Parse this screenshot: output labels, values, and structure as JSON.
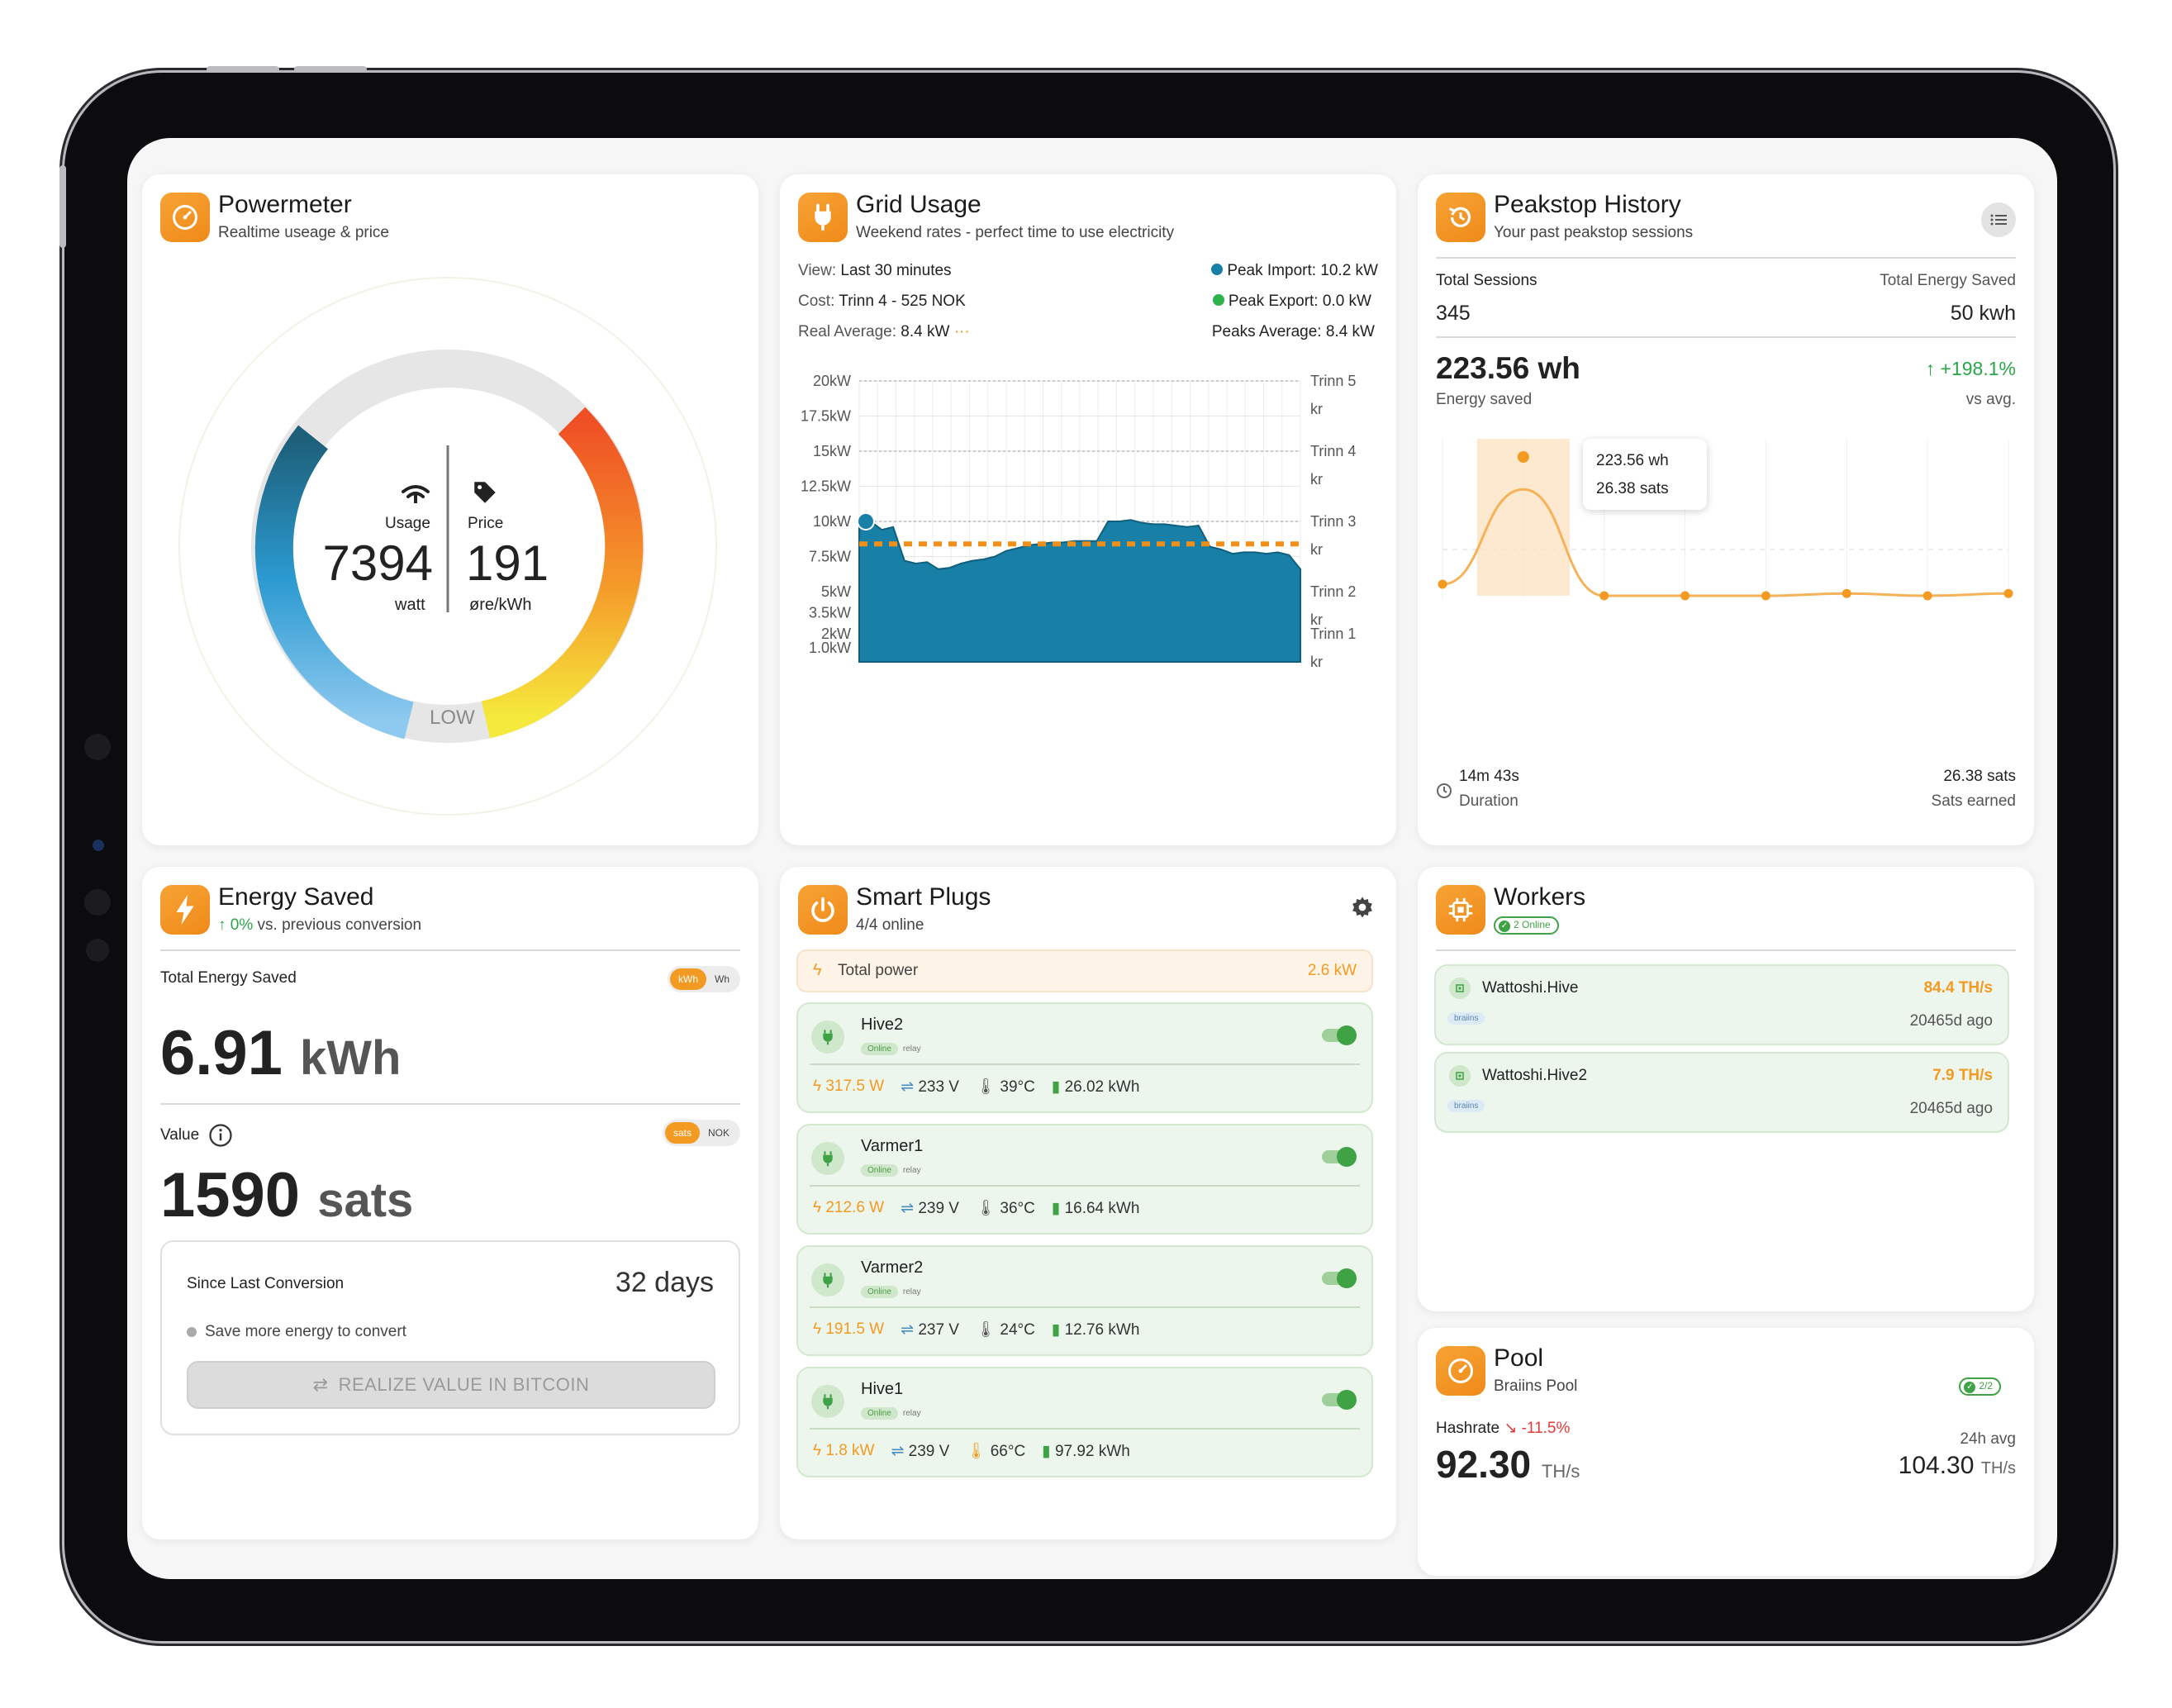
{
  "powermeter": {
    "title": "Powermeter",
    "subtitle": "Realtime useage & price",
    "usage_label": "Usage",
    "usage_value": "7394",
    "usage_unit": "watt",
    "price_label": "Price",
    "price_value": "191",
    "price_unit": "øre/kWh",
    "level": "LOW"
  },
  "grid": {
    "title": "Grid Usage",
    "subtitle": "Weekend rates - perfect time to use electricity",
    "view_label": "View:",
    "view_value": "Last 30 minutes",
    "cost_label": "Cost:",
    "cost_value": "Trinn 4 - 525 NOK",
    "avg_label": "Real Average:",
    "avg_value": "8.4 kW",
    "peak_import": "Peak Import: 10.2 kW",
    "peak_export": "Peak Export: 0.0 kW",
    "peaks_avg": "Peaks Average: 8.4 kW",
    "colors": {
      "import": "#1880a6",
      "export": "#2eb34a",
      "average": "#f0901a"
    }
  },
  "chart_data": {
    "type": "area",
    "yticks": [
      "20kW",
      "17.5kW",
      "15kW",
      "12.5kW",
      "10kW",
      "7.5kW",
      "5kW",
      "3.5kW",
      "2kW",
      "1.0kW"
    ],
    "tiers": [
      {
        "name": "Trinn 5",
        "unit": "kr",
        "y": 20
      },
      {
        "name": "Trinn 4",
        "unit": "kr",
        "y": 15
      },
      {
        "name": "Trinn 3",
        "unit": "kr",
        "y": 10
      },
      {
        "name": "Trinn 2",
        "unit": "kr",
        "y": 5
      },
      {
        "name": "Trinn 1",
        "unit": "kr",
        "y": 2
      }
    ],
    "ylim": [
      0,
      20
    ],
    "average": 8.4,
    "values": [
      10.0,
      10.0,
      9.4,
      9.6,
      7.2,
      7.0,
      7.1,
      6.6,
      6.7,
      7.0,
      7.2,
      7.3,
      7.5,
      7.9,
      8.1,
      8.3,
      8.4,
      8.5,
      8.5,
      8.6,
      8.6,
      8.6,
      10.0,
      10.0,
      10.1,
      9.9,
      9.8,
      9.8,
      9.7,
      9.6,
      9.7,
      8.2,
      8.0,
      7.7,
      7.8,
      7.8,
      7.7,
      7.8,
      7.6,
      6.6
    ]
  },
  "peakstop": {
    "title": "Peakstop History",
    "subtitle": "Your past peakstop sessions",
    "sessions_label": "Total Sessions",
    "sessions_value": "345",
    "energy_total_label": "Total Energy Saved",
    "energy_total_value": "50 kwh",
    "saved_value": "223.56 wh",
    "saved_label": "Energy saved",
    "delta": "+198.1%",
    "delta_label": "vs avg.",
    "tooltip_line1": "223.56 wh",
    "tooltip_line2": "26.38 sats",
    "duration_value": "14m 43s",
    "duration_label": "Duration",
    "sats_value": "26.38 sats",
    "sats_label": "Sats earned",
    "series": [
      0.1,
      0.92,
      0.0,
      0.0,
      0.0,
      0.02,
      0.0,
      0.02
    ]
  },
  "energy_saved": {
    "title": "Energy Saved",
    "change": "0%",
    "change_label": "vs. previous conversion",
    "total_label": "Total Energy Saved",
    "unit_options": [
      "kWh",
      "Wh"
    ],
    "value": "6.91",
    "unit": "kWh",
    "value_label": "Value",
    "currency_options": [
      "sats",
      "NOK"
    ],
    "sats_value": "1590",
    "sats_unit": "sats",
    "since_label": "Since Last Conversion",
    "since_value": "32 days",
    "hint": "Save more energy to convert",
    "button": "REALIZE VALUE IN BITCOIN"
  },
  "plugs": {
    "title": "Smart Plugs",
    "subtitle": "4/4 online",
    "total_label": "Total power",
    "total_value": "2.6 kW",
    "items": [
      {
        "name": "Hive2",
        "status": "Online",
        "type": "relay",
        "power": "317.5 W",
        "voltage": "233 V",
        "temp": "39°C",
        "energy": "26.02 kWh"
      },
      {
        "name": "Varmer1",
        "status": "Online",
        "type": "relay",
        "power": "212.6 W",
        "voltage": "239 V",
        "temp": "36°C",
        "energy": "16.64 kWh"
      },
      {
        "name": "Varmer2",
        "status": "Online",
        "type": "relay",
        "power": "191.5 W",
        "voltage": "237 V",
        "temp": "24°C",
        "energy": "12.76 kWh"
      },
      {
        "name": "Hive1",
        "status": "Online",
        "type": "relay",
        "power": "1.8 kW",
        "voltage": "239 V",
        "temp": "66°C",
        "energy": "97.92 kWh"
      }
    ]
  },
  "workers": {
    "title": "Workers",
    "online": "2 Online",
    "items": [
      {
        "name": "Wattoshi.Hive",
        "tag": "braiins",
        "hashrate": "84.4 TH/s",
        "seen": "20465d ago"
      },
      {
        "name": "Wattoshi.Hive2",
        "tag": "braiins",
        "hashrate": "7.9 TH/s",
        "seen": "20465d ago"
      }
    ]
  },
  "pool": {
    "title": "Pool",
    "subtitle": "Braiins Pool",
    "status": "2/2",
    "hashrate_label": "Hashrate",
    "hashrate_change": "-11.5%",
    "hashrate_value": "92.30",
    "hashrate_unit": "TH/s",
    "avg_label": "24h avg",
    "avg_value": "104.30",
    "avg_unit": "TH/s"
  }
}
